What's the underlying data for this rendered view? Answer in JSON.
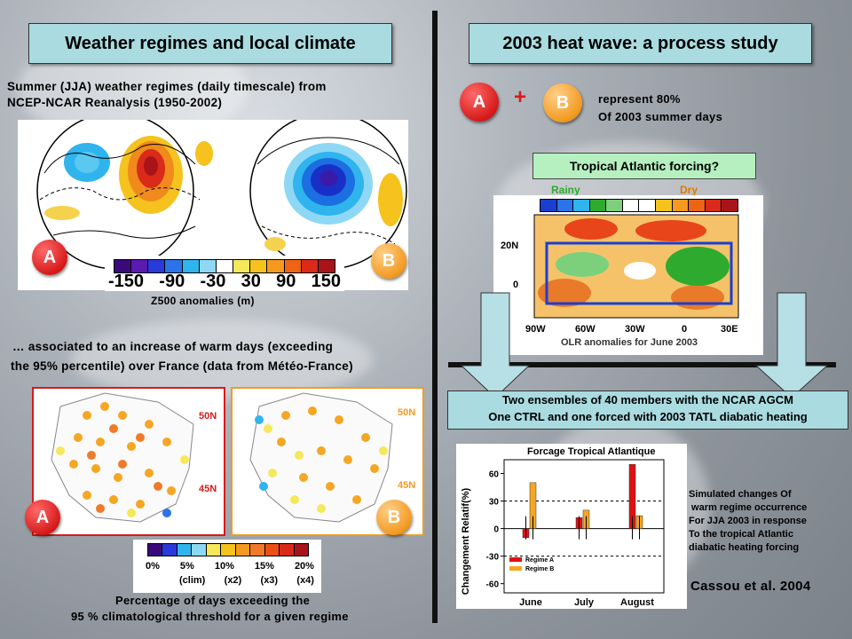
{
  "left": {
    "title": "Weather regimes and local climate",
    "intro_line1": "Summer (JJA) weather regimes (daily timescale) from",
    "intro_line2": "NCEP-NCAR Reanalysis (1950-2002)",
    "z500_ticks": [
      "-150",
      "-90",
      "-30",
      "30",
      "90",
      "150"
    ],
    "z500_caption": "Z500 anomalies (m)",
    "regime_a": "A",
    "regime_b": "B",
    "assoc_line1": "… associated to an increase of warm days (exceeding",
    "assoc_line2": "the 95% percentile) over France (data from Météo-France)",
    "map_lat_50": "50N",
    "map_lat_45": "45N",
    "pct_ticks": [
      "0%",
      "5%",
      "10%",
      "15%",
      "20%"
    ],
    "pct_subticks": [
      "(clim)",
      "(x2)",
      "(x3)",
      "(x4)"
    ],
    "pct_caption1": "Percentage of days exceeding the",
    "pct_caption2": "95 % climatological threshold for a given regime"
  },
  "right": {
    "title": "2003 heat wave: a process study",
    "plus": "+",
    "represent_line1": "represent  80%",
    "represent_line2": "Of 2003  summer days",
    "tatl_label": "Tropical Atlantic forcing?",
    "rainy": "Rainy",
    "dry": "Dry",
    "olr_lat_20": "20N",
    "olr_lat_0": "0",
    "olr_lons": [
      "90W",
      "60W",
      "30W",
      "0",
      "30E"
    ],
    "olr_caption": "OLR anomalies for June 2003",
    "ensemble_line1": "Two ensembles of 40 members with the NCAR AGCM",
    "ensemble_line2": "One CTRL and one forced with 2003 TATL diabatic heating",
    "sim_lines": [
      "Simulated changes Of",
      " warm regime occurrence",
      "For JJA 2003 in response",
      "To the tropical Atlantic",
      "diabatic heating forcing"
    ],
    "citation": "Cassou et al. 2004"
  },
  "colors": {
    "title_bg": "#a9dbe0",
    "regime_a": "#d71a1a",
    "regime_b": "#f39a21",
    "rainy": "#2eab2e",
    "dry": "#e07a00"
  },
  "chart_data": {
    "type": "bar",
    "title": "Forcage Tropical Atlantique",
    "ylabel": "Changement Relatif(%)",
    "categories": [
      "June",
      "July",
      "August"
    ],
    "ylim": [
      -70,
      75
    ],
    "yticks": [
      60,
      30,
      0,
      -30,
      -60
    ],
    "series": [
      {
        "name": "Regime A",
        "color": "#e01010",
        "values": [
          -10,
          12,
          70
        ]
      },
      {
        "name": "Regime B",
        "color": "#f5a623",
        "values": [
          50,
          20,
          14
        ]
      }
    ],
    "reference_lines": [
      -30,
      30
    ],
    "legend": "bottom-left"
  }
}
